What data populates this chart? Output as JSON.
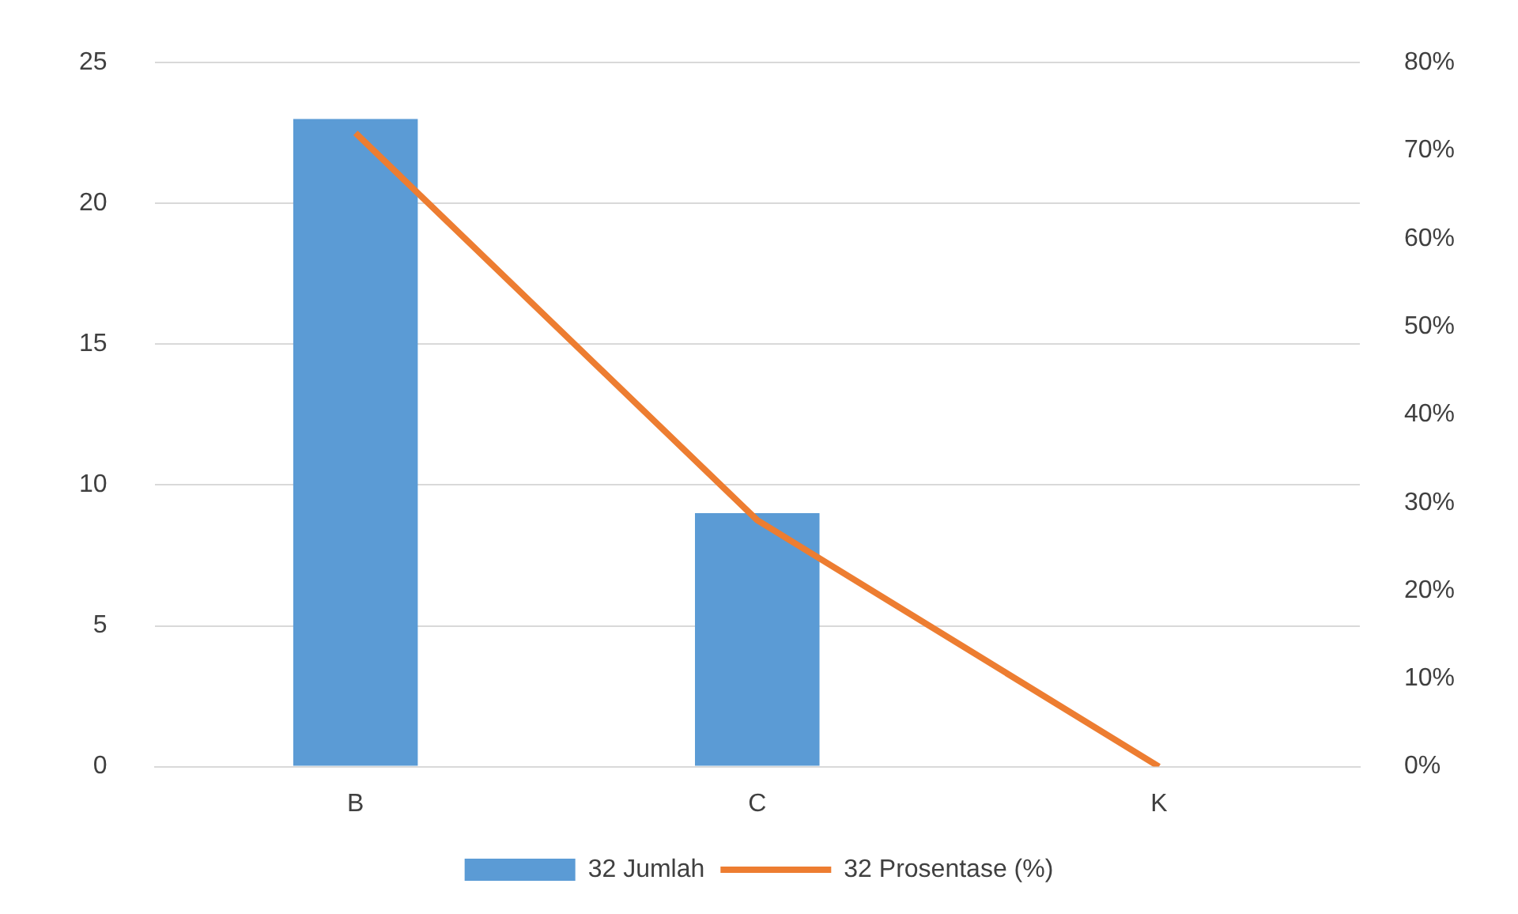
{
  "chart_data": {
    "type": "bar",
    "categories": [
      "B",
      "C",
      "K"
    ],
    "series": [
      {
        "name": "32 Jumlah",
        "color": "#5b9bd5",
        "values": [
          23,
          9,
          0
        ]
      },
      {
        "name": "32 Prosentase (%)",
        "type": "line",
        "axis": "y2",
        "color": "#ed7d31",
        "values": [
          72,
          28,
          0
        ]
      }
    ],
    "ylim": [
      0,
      25
    ],
    "yticks": [
      0,
      5,
      10,
      15,
      20,
      25
    ],
    "y2lim": [
      0,
      80
    ],
    "y2ticks": [
      {
        "value": 0,
        "label": "0%"
      },
      {
        "value": 10,
        "label": "10%"
      },
      {
        "value": 20,
        "label": "20%"
      },
      {
        "value": 30,
        "label": "30%"
      },
      {
        "value": 40,
        "label": "40%"
      },
      {
        "value": 50,
        "label": "50%"
      },
      {
        "value": 60,
        "label": "60%"
      },
      {
        "value": 70,
        "label": "70%"
      },
      {
        "value": 80,
        "label": "80%"
      }
    ],
    "grid": "y",
    "legend": "bottom",
    "marker": "none",
    "line_style": "solid"
  }
}
